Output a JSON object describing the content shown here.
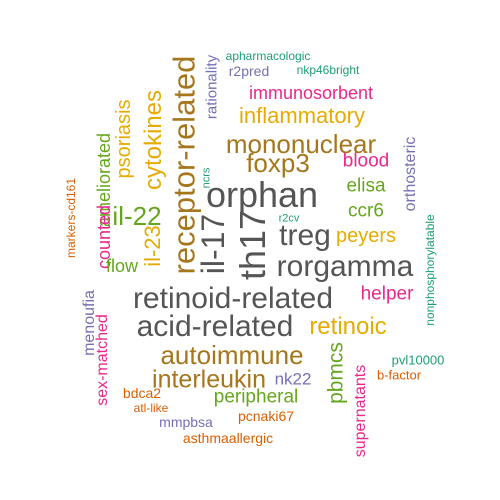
{
  "colors": {
    "gray": "#555555",
    "brown": "#a6761d",
    "gold": "#e6ab02",
    "magenta": "#e7298a",
    "green": "#66a61e",
    "teal": "#1b9e77",
    "purple": "#7570b3",
    "orange": "#d95f02"
  },
  "words": [
    "th17",
    "il-17",
    "orphan",
    "treg",
    "rorgamma",
    "retinoid-related",
    "acid-related",
    "receptor-related",
    "mononuclear",
    "foxp3",
    "autoimmune",
    "interleukin",
    "retinoic",
    "il-22",
    "cytokines",
    "inflammatory",
    "il-23",
    "psoriasis",
    "immunosorbent",
    "peyers",
    "elisa",
    "ccr6",
    "blood",
    "helper",
    "peripheral",
    "pbmcs",
    "ameliorated",
    "counted",
    "flow",
    "supernatants",
    "orthosteric",
    "nk22",
    "menoufia",
    "sex-matched",
    "asthmaallergic",
    "rationality",
    "r2pred",
    "apharmacologic",
    "nkp46bright",
    "markers-cd161",
    "ncrs",
    "r2cv",
    "nonphosphorylatable",
    "pvl10000",
    "b-factor",
    "bdca2",
    "atl-like",
    "mmpbsa",
    "pcnaki67"
  ]
}
